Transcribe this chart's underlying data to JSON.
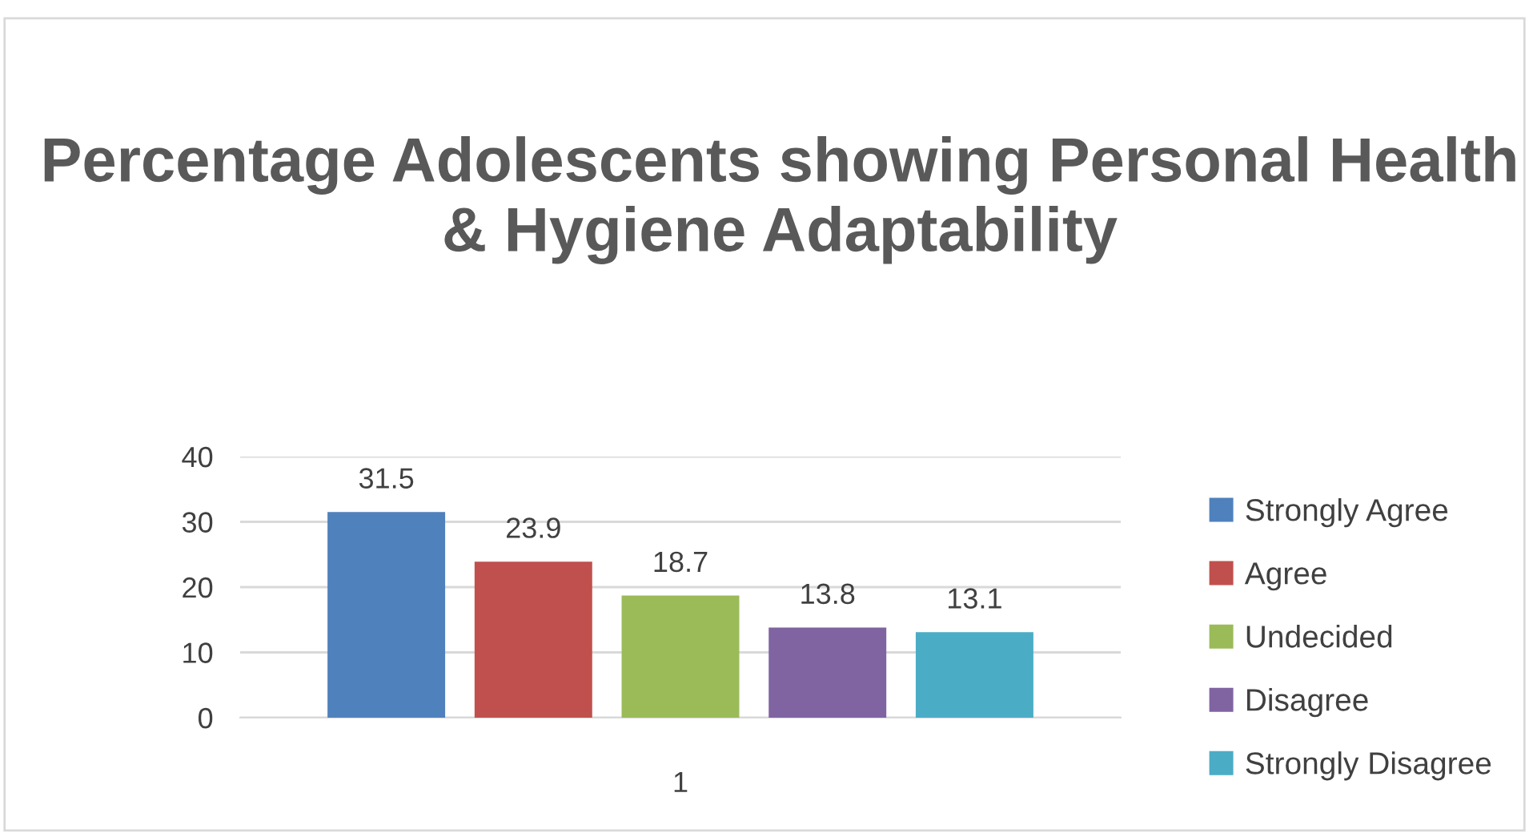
{
  "chart_data": {
    "type": "bar",
    "title": "Percentage Adolescents showing Personal Health & Hygiene Adaptability",
    "categories": [
      "1"
    ],
    "series": [
      {
        "name": "Strongly Agree",
        "color": "#4f81bd",
        "values": [
          31.5
        ]
      },
      {
        "name": "Agree",
        "color": "#c0504d",
        "values": [
          23.9
        ]
      },
      {
        "name": "Undecided",
        "color": "#9bbb59",
        "values": [
          18.7
        ]
      },
      {
        "name": "Disagree",
        "color": "#8064a2",
        "values": [
          13.8
        ]
      },
      {
        "name": "Strongly Disagree",
        "color": "#4bacc6",
        "values": [
          13.1
        ]
      }
    ],
    "ylim": [
      0,
      40
    ],
    "yticks": [
      0,
      10,
      20,
      30,
      40
    ],
    "grid": "y",
    "legend": "right",
    "data_labels": true
  }
}
